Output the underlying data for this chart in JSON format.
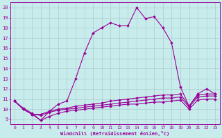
{
  "xlabel": "Windchill (Refroidissement éolien,°C)",
  "background_color": "#c8ecec",
  "line_color": "#990099",
  "grid_color": "#aacccc",
  "xlim": [
    -0.5,
    23.5
  ],
  "ylim": [
    8.5,
    20.5
  ],
  "xticks": [
    0,
    1,
    2,
    3,
    4,
    5,
    6,
    7,
    8,
    9,
    10,
    11,
    12,
    13,
    14,
    15,
    16,
    17,
    18,
    19,
    20,
    21,
    22,
    23
  ],
  "yticks": [
    9,
    10,
    11,
    12,
    13,
    14,
    15,
    16,
    17,
    18,
    19,
    20
  ],
  "series": [
    {
      "x": [
        0,
        1,
        2,
        3,
        4,
        5,
        6,
        7,
        8,
        9,
        10,
        11,
        12,
        13,
        14,
        15,
        16,
        17,
        18,
        19,
        20,
        21,
        22,
        23
      ],
      "y": [
        10.8,
        10.1,
        9.6,
        8.9,
        9.8,
        10.5,
        10.8,
        13.0,
        15.5,
        17.5,
        18.0,
        18.5,
        18.2,
        18.2,
        20.0,
        18.9,
        19.1,
        18.0,
        16.5,
        12.2,
        10.3,
        11.5,
        12.0,
        11.5
      ]
    },
    {
      "x": [
        0,
        1,
        2,
        3,
        4,
        5,
        6,
        7,
        8,
        9,
        10,
        11,
        12,
        13,
        14,
        15,
        16,
        17,
        18,
        19,
        20,
        21,
        22,
        23
      ],
      "y": [
        10.8,
        10.0,
        9.5,
        9.5,
        9.8,
        10.0,
        10.1,
        10.3,
        10.4,
        10.5,
        10.6,
        10.8,
        10.9,
        11.0,
        11.1,
        11.2,
        11.3,
        11.4,
        11.4,
        11.5,
        10.3,
        11.4,
        11.5,
        11.5
      ]
    },
    {
      "x": [
        0,
        1,
        2,
        3,
        4,
        5,
        6,
        7,
        8,
        9,
        10,
        11,
        12,
        13,
        14,
        15,
        16,
        17,
        18,
        19,
        20,
        21,
        22,
        23
      ],
      "y": [
        10.8,
        10.0,
        9.5,
        9.4,
        9.7,
        9.9,
        10.0,
        10.1,
        10.2,
        10.3,
        10.4,
        10.5,
        10.6,
        10.7,
        10.8,
        10.9,
        11.0,
        11.1,
        11.1,
        11.2,
        10.2,
        11.2,
        11.3,
        11.3
      ]
    },
    {
      "x": [
        0,
        1,
        2,
        3,
        4,
        5,
        6,
        7,
        8,
        9,
        10,
        11,
        12,
        13,
        14,
        15,
        16,
        17,
        18,
        19,
        20,
        21,
        22,
        23
      ],
      "y": [
        10.8,
        10.0,
        9.5,
        8.9,
        9.3,
        9.6,
        9.8,
        9.9,
        10.0,
        10.1,
        10.2,
        10.3,
        10.4,
        10.5,
        10.5,
        10.6,
        10.7,
        10.7,
        10.8,
        10.9,
        10.0,
        10.9,
        11.0,
        11.0
      ]
    }
  ]
}
